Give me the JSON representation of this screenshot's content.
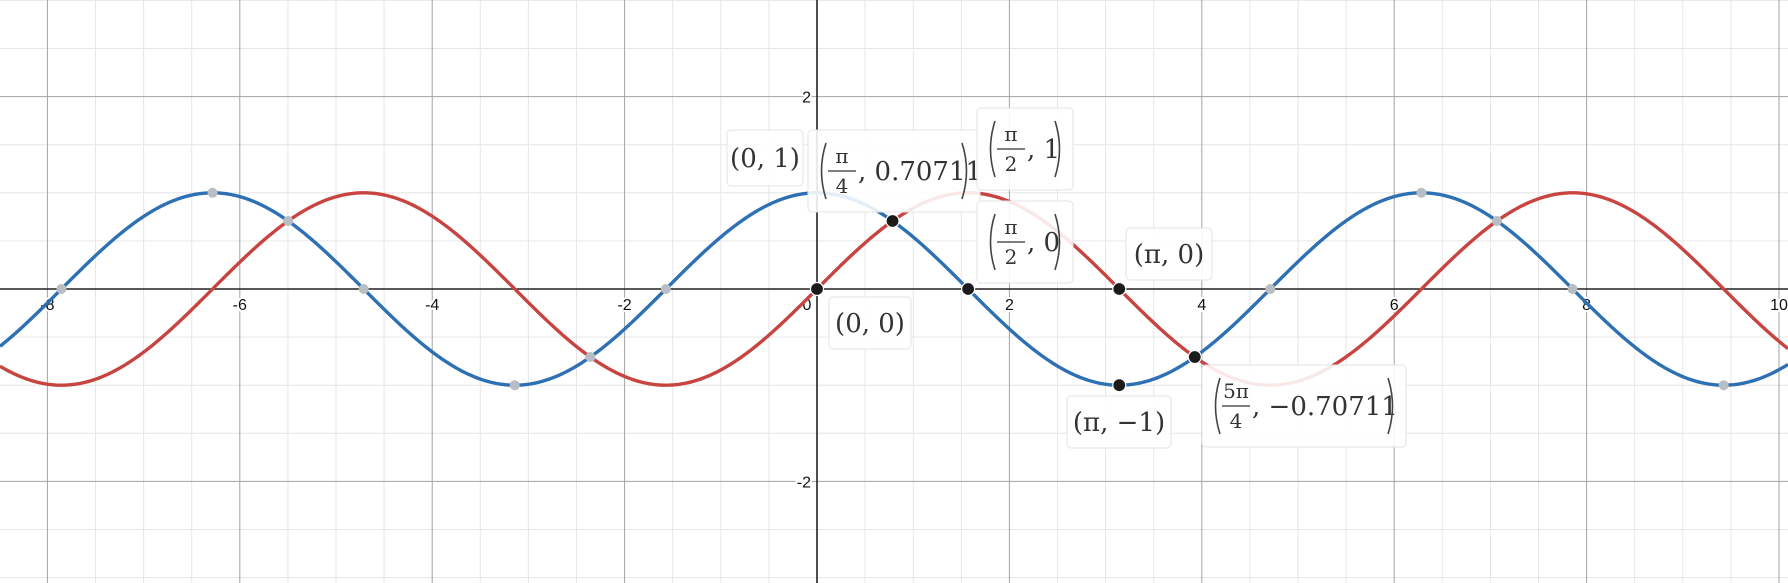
{
  "chart_data": {
    "type": "line",
    "xlim": [
      -8.5,
      10.1
    ],
    "ylim": [
      -3.05,
      3.0
    ],
    "grid": true,
    "x_ticks": [
      "-8",
      "-6",
      "-4",
      "-2",
      "0",
      "2",
      "4",
      "6",
      "8",
      "10"
    ],
    "y_ticks": [
      "2",
      "-2"
    ],
    "series": [
      {
        "function": "cos",
        "color": "#2d70b3",
        "marked_points": [
          {
            "x": -7.854,
            "y": 0
          },
          {
            "x": -6.283,
            "y": 1
          },
          {
            "x": -5.498,
            "y": 0.70711
          },
          {
            "x": -4.712,
            "y": 0
          },
          {
            "x": -3.142,
            "y": -1
          },
          {
            "x": -2.356,
            "y": -0.70711
          },
          {
            "x": -1.571,
            "y": 0
          },
          {
            "x": 4.712,
            "y": 0
          },
          {
            "x": 6.283,
            "y": 1
          },
          {
            "x": 7.069,
            "y": 0.70711
          },
          {
            "x": 7.854,
            "y": 0
          },
          {
            "x": 9.425,
            "y": -1
          }
        ]
      },
      {
        "function": "sin",
        "color": "#c74440",
        "marked_points": []
      }
    ],
    "highlighted_points": [
      {
        "x": 0,
        "y": 0
      },
      {
        "x": 0.785,
        "y": 0.70711
      },
      {
        "x": 1.571,
        "y": 0
      },
      {
        "x": 3.142,
        "y": 0
      },
      {
        "x": 3.142,
        "y": -1
      },
      {
        "x": 3.927,
        "y": -0.70711
      }
    ],
    "labels": [
      {
        "id": "p01",
        "text": "(0, 1)"
      },
      {
        "id": "ppi4",
        "num": "π",
        "den": "4",
        "rest": ", 0.70711"
      },
      {
        "id": "ppi21",
        "num": "π",
        "den": "2",
        "rest": ", 1"
      },
      {
        "id": "ppi20",
        "num": "π",
        "den": "2",
        "rest": ", 0"
      },
      {
        "id": "p00",
        "text": "(0, 0)"
      },
      {
        "id": "ppi0",
        "text": "(π, 0)"
      },
      {
        "id": "ppim1",
        "text": "(π, −1)"
      },
      {
        "id": "p5pi4",
        "num": "5π",
        "den": "4",
        "rest": ", −0.70711"
      }
    ]
  }
}
